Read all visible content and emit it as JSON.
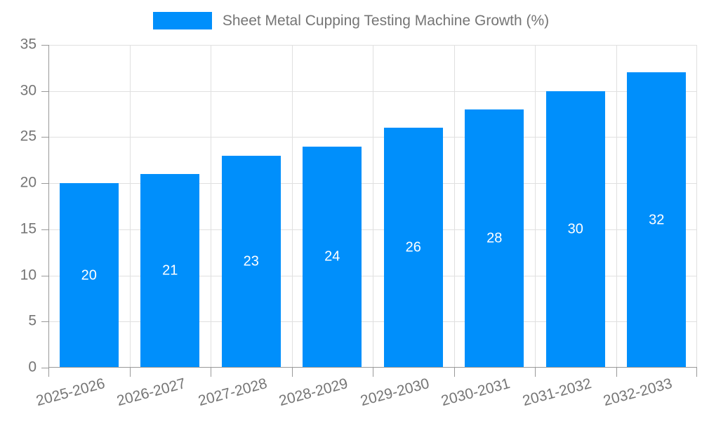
{
  "legend": {
    "label": "Sheet Metal Cupping Testing Machine Growth (%)",
    "swatch_color": "#008FFB"
  },
  "colors": {
    "bar": "#008FFB",
    "grid": "#e0e0e0",
    "axis": "#999999",
    "text": "#757575",
    "bar_label": "#ffffff",
    "background": "#ffffff"
  },
  "chart_data": {
    "type": "bar",
    "title": "Sheet Metal Cupping Testing Machine Growth (%)",
    "categories": [
      "2025-2026",
      "2026-2027",
      "2027-2028",
      "2028-2029",
      "2029-2030",
      "2030-2031",
      "2031-2032",
      "2032-2033"
    ],
    "values": [
      20,
      21,
      23,
      24,
      26,
      28,
      30,
      32
    ],
    "bar_labels": [
      "20",
      "21",
      "23",
      "24",
      "26",
      "28",
      "30",
      "32"
    ],
    "xlabel": "",
    "ylabel": "",
    "ylim": [
      0,
      35
    ],
    "yticks": [
      0,
      5,
      10,
      15,
      20,
      25,
      30,
      35
    ],
    "ytick_labels": [
      "0",
      "5",
      "10",
      "15",
      "20",
      "25",
      "30",
      "35"
    ],
    "grid": true,
    "x_label_rotation_deg": -15,
    "legend_position": "top-center",
    "value_labels_inside": true
  }
}
